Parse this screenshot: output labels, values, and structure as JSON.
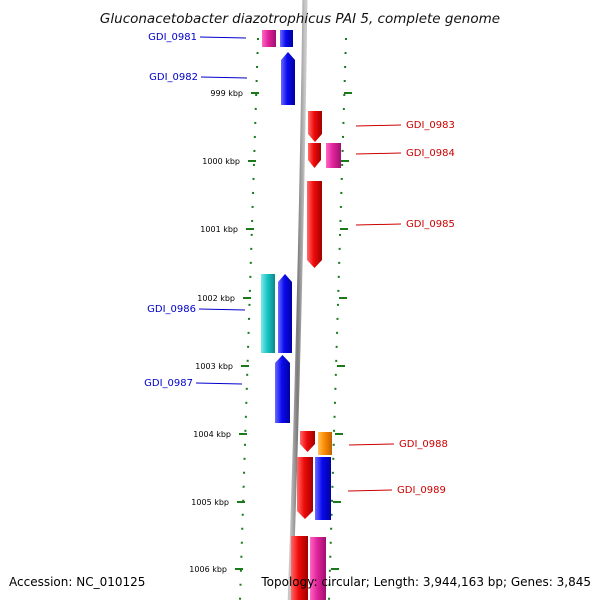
{
  "title": "Gluconacetobacter diazotrophicus PAI 5, complete genome",
  "accession_text": "Accession: NC_010125",
  "topology_text": "Topology: circular; Length: 3,944,163 bp; Genes: 3,845",
  "colors": {
    "backbone": "#8c8c8c",
    "tick": "#1a7a1a",
    "label_left": "#0000cc",
    "label_right": "#cc0000",
    "pink": "#e0239a",
    "blue": "#0a0af0",
    "red": "#f00a0a",
    "cyan": "#18c4c4",
    "orange": "#ff8c00"
  },
  "ticks": [
    {
      "label": "999 kbp"
    },
    {
      "label": "1000 kbp"
    },
    {
      "label": "1001 kbp"
    },
    {
      "label": "1002 kbp"
    },
    {
      "label": "1003 kbp"
    },
    {
      "label": "1004 kbp"
    },
    {
      "label": "1005 kbp"
    },
    {
      "label": "1006 kbp"
    }
  ],
  "genes": [
    {
      "label": "GDI_0981",
      "strand": "+",
      "color": "pink"
    },
    {
      "label": "",
      "strand": "+",
      "color": "blue"
    },
    {
      "label": "GDI_0982",
      "strand": "+",
      "color": "blue"
    },
    {
      "label": "GDI_0983",
      "strand": "-",
      "color": "red"
    },
    {
      "label": "",
      "strand": "-",
      "color": "red"
    },
    {
      "label": "GDI_0984",
      "strand": "-",
      "color": "pink"
    },
    {
      "label": "GDI_0985",
      "strand": "-",
      "color": "red"
    },
    {
      "label": "GDI_0986",
      "strand": "+",
      "color": "cyan"
    },
    {
      "label": "",
      "strand": "+",
      "color": "blue"
    },
    {
      "label": "GDI_0987",
      "strand": "+",
      "color": "blue"
    },
    {
      "label": "",
      "strand": "-",
      "color": "red"
    },
    {
      "label": "GDI_0988",
      "strand": "-",
      "color": "orange"
    },
    {
      "label": "",
      "strand": "-",
      "color": "red"
    },
    {
      "label": "GDI_0989",
      "strand": "-",
      "color": "blue"
    },
    {
      "label": "",
      "strand": "-",
      "color": "red"
    },
    {
      "label": "",
      "strand": "-",
      "color": "pink"
    }
  ]
}
